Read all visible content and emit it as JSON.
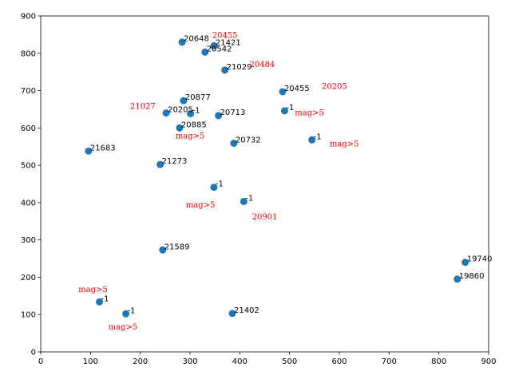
{
  "chart_data": {
    "type": "scatter",
    "title": "",
    "xlabel": "",
    "ylabel": "",
    "xlim": [
      0,
      900
    ],
    "ylim": [
      0,
      900
    ],
    "x_ticks": [
      0,
      100,
      200,
      300,
      400,
      500,
      600,
      700,
      800,
      900
    ],
    "y_ticks": [
      0,
      100,
      200,
      300,
      400,
      500,
      600,
      700,
      800,
      900
    ],
    "grid": false,
    "marker_color": "#1f77b4",
    "annotation_color": "#ff0000",
    "points": [
      {
        "x": 284,
        "y": 830,
        "label": "20648"
      },
      {
        "x": 348,
        "y": 820,
        "label": "21421"
      },
      {
        "x": 330,
        "y": 803,
        "label": "20542"
      },
      {
        "x": 370,
        "y": 755,
        "label": "21029"
      },
      {
        "x": 486,
        "y": 697,
        "label": "20455"
      },
      {
        "x": 287,
        "y": 673,
        "label": "20877"
      },
      {
        "x": 252,
        "y": 640,
        "label": "20205"
      },
      {
        "x": 301,
        "y": 638,
        "label": "-1"
      },
      {
        "x": 357,
        "y": 633,
        "label": "20713"
      },
      {
        "x": 490,
        "y": 646,
        "label": "-1"
      },
      {
        "x": 279,
        "y": 600,
        "label": "20885"
      },
      {
        "x": 388,
        "y": 559,
        "label": "20732"
      },
      {
        "x": 545,
        "y": 568,
        "label": "-1"
      },
      {
        "x": 96,
        "y": 538,
        "label": "21683"
      },
      {
        "x": 240,
        "y": 502,
        "label": "21273"
      },
      {
        "x": 348,
        "y": 441,
        "label": "-1"
      },
      {
        "x": 408,
        "y": 403,
        "label": "-1"
      },
      {
        "x": 245,
        "y": 273,
        "label": "21589"
      },
      {
        "x": 853,
        "y": 240,
        "label": "19740"
      },
      {
        "x": 837,
        "y": 195,
        "label": "19860"
      },
      {
        "x": 118,
        "y": 134,
        "label": "-1"
      },
      {
        "x": 171,
        "y": 102,
        "label": "-1"
      },
      {
        "x": 385,
        "y": 103,
        "label": "21402"
      }
    ],
    "annotations": [
      {
        "x": 370,
        "y": 850,
        "text": "20455"
      },
      {
        "x": 445,
        "y": 772,
        "text": "20484"
      },
      {
        "x": 590,
        "y": 713,
        "text": "20205"
      },
      {
        "x": 205,
        "y": 660,
        "text": "21027"
      },
      {
        "x": 540,
        "y": 642,
        "text": "mag>5"
      },
      {
        "x": 300,
        "y": 580,
        "text": "mag>5"
      },
      {
        "x": 610,
        "y": 559,
        "text": "mag>5"
      },
      {
        "x": 321,
        "y": 396,
        "text": "mag>5"
      },
      {
        "x": 450,
        "y": 363,
        "text": "20901"
      },
      {
        "x": 105,
        "y": 169,
        "text": "mag>5"
      },
      {
        "x": 165,
        "y": 68,
        "text": "mag>5"
      }
    ]
  }
}
